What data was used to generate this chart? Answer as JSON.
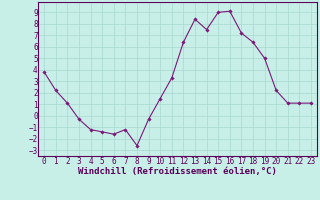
{
  "x": [
    0,
    1,
    2,
    3,
    4,
    5,
    6,
    7,
    8,
    9,
    10,
    11,
    12,
    13,
    14,
    15,
    16,
    17,
    18,
    19,
    20,
    21,
    22,
    23
  ],
  "y": [
    3.8,
    2.2,
    1.1,
    -0.3,
    -1.2,
    -1.4,
    -1.6,
    -1.2,
    -2.6,
    -0.3,
    1.5,
    3.3,
    6.4,
    8.4,
    7.5,
    9.0,
    9.1,
    7.2,
    6.4,
    5.0,
    2.2,
    1.1,
    1.1,
    1.1
  ],
  "line_color": "#7a1a7a",
  "marker": "D",
  "marker_size": 1.8,
  "background_color": "#c8eee8",
  "grid_color": "#a8d8d0",
  "xlabel": "Windchill (Refroidissement éolien,°C)",
  "xlabel_fontsize": 6.5,
  "tick_fontsize": 5.5,
  "ylim": [
    -3.5,
    9.9
  ],
  "xlim": [
    -0.5,
    23.5
  ],
  "yticks": [
    -3,
    -2,
    -1,
    0,
    1,
    2,
    3,
    4,
    5,
    6,
    7,
    8,
    9
  ],
  "xticks": [
    0,
    1,
    2,
    3,
    4,
    5,
    6,
    7,
    8,
    9,
    10,
    11,
    12,
    13,
    14,
    15,
    16,
    17,
    18,
    19,
    20,
    21,
    22,
    23
  ]
}
